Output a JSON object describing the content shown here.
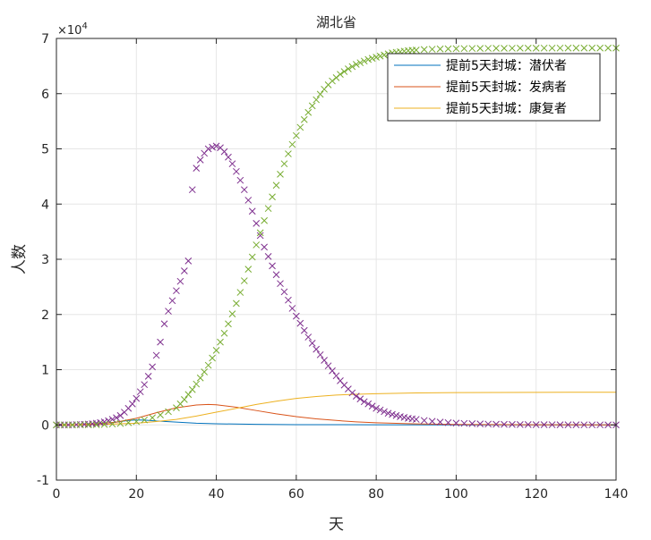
{
  "chart_data": {
    "type": "line",
    "title": "湖北省",
    "xlabel": "天",
    "ylabel": "人数",
    "y_exponent_label": "×10",
    "y_exponent_power": "4",
    "xlim": [
      0,
      140
    ],
    "ylim": [
      -10000,
      70000
    ],
    "x_ticks": [
      0,
      20,
      40,
      60,
      80,
      100,
      120,
      140
    ],
    "y_ticks": [
      -10000,
      0,
      10000,
      20000,
      30000,
      40000,
      50000,
      60000,
      70000
    ],
    "y_tick_labels": [
      "-1",
      "0",
      "1",
      "2",
      "3",
      "4",
      "5",
      "6",
      "7"
    ],
    "grid": true,
    "legend_position": "top-right",
    "colors": {
      "latent": "#0072BD",
      "onset": "#D95319",
      "recovered": "#EDB120",
      "cases_marker": "#7E2F8E",
      "recovered_marker": "#77AC30",
      "grid": "#e6e6e6",
      "axis": "#262626"
    },
    "series": [
      {
        "name": "提前5天封城：潜伏者",
        "kind": "line",
        "color_key": "latent",
        "points": [
          [
            0,
            0
          ],
          [
            5,
            20
          ],
          [
            10,
            150
          ],
          [
            15,
            500
          ],
          [
            18,
            800
          ],
          [
            20,
            900
          ],
          [
            22,
            870
          ],
          [
            25,
            700
          ],
          [
            30,
            500
          ],
          [
            35,
            300
          ],
          [
            40,
            200
          ],
          [
            50,
            100
          ],
          [
            60,
            50
          ],
          [
            80,
            20
          ],
          [
            100,
            10
          ],
          [
            140,
            0
          ]
        ]
      },
      {
        "name": "提前5天封城：发病者",
        "kind": "line",
        "color_key": "onset",
        "points": [
          [
            0,
            0
          ],
          [
            5,
            50
          ],
          [
            10,
            200
          ],
          [
            15,
            500
          ],
          [
            20,
            1200
          ],
          [
            25,
            2200
          ],
          [
            30,
            3100
          ],
          [
            35,
            3600
          ],
          [
            38,
            3700
          ],
          [
            40,
            3650
          ],
          [
            45,
            3200
          ],
          [
            50,
            2600
          ],
          [
            55,
            2000
          ],
          [
            60,
            1500
          ],
          [
            65,
            1100
          ],
          [
            70,
            800
          ],
          [
            75,
            550
          ],
          [
            80,
            380
          ],
          [
            90,
            180
          ],
          [
            100,
            80
          ],
          [
            120,
            20
          ],
          [
            140,
            0
          ]
        ]
      },
      {
        "name": "提前5天封城：康复者",
        "kind": "line",
        "color_key": "recovered",
        "points": [
          [
            0,
            0
          ],
          [
            10,
            50
          ],
          [
            20,
            300
          ],
          [
            25,
            600
          ],
          [
            30,
            1000
          ],
          [
            35,
            1600
          ],
          [
            40,
            2300
          ],
          [
            45,
            3000
          ],
          [
            50,
            3700
          ],
          [
            55,
            4300
          ],
          [
            60,
            4800
          ],
          [
            65,
            5150
          ],
          [
            70,
            5400
          ],
          [
            75,
            5550
          ],
          [
            80,
            5650
          ],
          [
            90,
            5780
          ],
          [
            100,
            5850
          ],
          [
            120,
            5900
          ],
          [
            140,
            5920
          ]
        ]
      },
      {
        "kind": "marker",
        "color_key": "cases_marker",
        "points": [
          [
            0,
            0
          ],
          [
            1,
            0
          ],
          [
            2,
            0
          ],
          [
            3,
            0
          ],
          [
            4,
            0
          ],
          [
            5,
            50
          ],
          [
            6,
            70
          ],
          [
            7,
            100
          ],
          [
            8,
            150
          ],
          [
            9,
            200
          ],
          [
            10,
            300
          ],
          [
            11,
            400
          ],
          [
            12,
            550
          ],
          [
            13,
            750
          ],
          [
            14,
            1000
          ],
          [
            15,
            1300
          ],
          [
            16,
            1700
          ],
          [
            17,
            2300
          ],
          [
            18,
            3000
          ],
          [
            19,
            3800
          ],
          [
            20,
            4800
          ],
          [
            21,
            6000
          ],
          [
            22,
            7300
          ],
          [
            23,
            8800
          ],
          [
            24,
            10500
          ],
          [
            25,
            12600
          ],
          [
            26,
            15000
          ],
          [
            27,
            18300
          ],
          [
            28,
            20600
          ],
          [
            29,
            22500
          ],
          [
            30,
            24300
          ],
          [
            31,
            26000
          ],
          [
            32,
            27900
          ],
          [
            33,
            29700
          ],
          [
            34,
            42600
          ],
          [
            35,
            46500
          ],
          [
            36,
            48000
          ],
          [
            37,
            49200
          ],
          [
            38,
            50000
          ],
          [
            39,
            50300
          ],
          [
            40,
            50500
          ],
          [
            41,
            50200
          ],
          [
            42,
            49500
          ],
          [
            43,
            48500
          ],
          [
            44,
            47300
          ],
          [
            45,
            45900
          ],
          [
            46,
            44300
          ],
          [
            47,
            42600
          ],
          [
            48,
            40700
          ],
          [
            49,
            38700
          ],
          [
            50,
            36500
          ],
          [
            51,
            34300
          ],
          [
            52,
            32200
          ],
          [
            53,
            30500
          ],
          [
            54,
            28800
          ],
          [
            55,
            27200
          ],
          [
            56,
            25600
          ],
          [
            57,
            24100
          ],
          [
            58,
            22600
          ],
          [
            59,
            21100
          ],
          [
            60,
            19700
          ],
          [
            61,
            18400
          ],
          [
            62,
            17100
          ],
          [
            63,
            15900
          ],
          [
            64,
            14800
          ],
          [
            65,
            13700
          ],
          [
            66,
            12700
          ],
          [
            67,
            11700
          ],
          [
            68,
            10700
          ],
          [
            69,
            9800
          ],
          [
            70,
            8900
          ],
          [
            71,
            8000
          ],
          [
            72,
            7200
          ],
          [
            73,
            6500
          ],
          [
            74,
            5800
          ],
          [
            75,
            5200
          ],
          [
            76,
            4700
          ],
          [
            77,
            4200
          ],
          [
            78,
            3800
          ],
          [
            79,
            3400
          ],
          [
            80,
            3000
          ],
          [
            81,
            2700
          ],
          [
            82,
            2400
          ],
          [
            83,
            2100
          ],
          [
            84,
            1900
          ],
          [
            85,
            1700
          ],
          [
            86,
            1500
          ],
          [
            87,
            1350
          ],
          [
            88,
            1200
          ],
          [
            89,
            1100
          ],
          [
            90,
            1000
          ],
          [
            92,
            800
          ],
          [
            94,
            650
          ],
          [
            96,
            500
          ],
          [
            98,
            400
          ],
          [
            100,
            330
          ],
          [
            102,
            270
          ],
          [
            104,
            220
          ],
          [
            106,
            180
          ],
          [
            108,
            150
          ],
          [
            110,
            120
          ],
          [
            112,
            100
          ],
          [
            114,
            80
          ],
          [
            116,
            65
          ],
          [
            118,
            55
          ],
          [
            120,
            45
          ],
          [
            122,
            35
          ],
          [
            124,
            30
          ],
          [
            126,
            25
          ],
          [
            128,
            20
          ],
          [
            130,
            15
          ],
          [
            132,
            12
          ],
          [
            134,
            10
          ],
          [
            136,
            8
          ],
          [
            138,
            5
          ],
          [
            140,
            0
          ]
        ]
      },
      {
        "kind": "marker",
        "color_key": "recovered_marker",
        "points": [
          [
            0,
            0
          ],
          [
            2,
            0
          ],
          [
            4,
            0
          ],
          [
            6,
            10
          ],
          [
            8,
            20
          ],
          [
            10,
            40
          ],
          [
            12,
            80
          ],
          [
            14,
            150
          ],
          [
            16,
            250
          ],
          [
            18,
            400
          ],
          [
            20,
            600
          ],
          [
            22,
            900
          ],
          [
            24,
            1300
          ],
          [
            26,
            1800
          ],
          [
            28,
            2400
          ],
          [
            30,
            3100
          ],
          [
            31,
            3800
          ],
          [
            32,
            4600
          ],
          [
            33,
            5500
          ],
          [
            34,
            6400
          ],
          [
            35,
            7400
          ],
          [
            36,
            8500
          ],
          [
            37,
            9600
          ],
          [
            38,
            10800
          ],
          [
            39,
            12100
          ],
          [
            40,
            13500
          ],
          [
            41,
            15000
          ],
          [
            42,
            16600
          ],
          [
            43,
            18300
          ],
          [
            44,
            20100
          ],
          [
            45,
            22000
          ],
          [
            46,
            24000
          ],
          [
            47,
            26100
          ],
          [
            48,
            28200
          ],
          [
            49,
            30400
          ],
          [
            50,
            32600
          ],
          [
            51,
            34800
          ],
          [
            52,
            37000
          ],
          [
            53,
            39200
          ],
          [
            54,
            41300
          ],
          [
            55,
            43400
          ],
          [
            56,
            45400
          ],
          [
            57,
            47300
          ],
          [
            58,
            49100
          ],
          [
            59,
            50800
          ],
          [
            60,
            52400
          ],
          [
            61,
            53900
          ],
          [
            62,
            55300
          ],
          [
            63,
            56600
          ],
          [
            64,
            57800
          ],
          [
            65,
            58900
          ],
          [
            66,
            59900
          ],
          [
            67,
            60800
          ],
          [
            68,
            61600
          ],
          [
            69,
            62300
          ],
          [
            70,
            62900
          ],
          [
            71,
            63500
          ],
          [
            72,
            64000
          ],
          [
            73,
            64500
          ],
          [
            74,
            64900
          ],
          [
            75,
            65300
          ],
          [
            76,
            65600
          ],
          [
            77,
            65900
          ],
          [
            78,
            66200
          ],
          [
            79,
            66400
          ],
          [
            80,
            66600
          ],
          [
            81,
            66800
          ],
          [
            82,
            67000
          ],
          [
            83,
            67200
          ],
          [
            84,
            67400
          ],
          [
            85,
            67500
          ],
          [
            86,
            67600
          ],
          [
            87,
            67700
          ],
          [
            88,
            67800
          ],
          [
            89,
            67850
          ],
          [
            90,
            67900
          ],
          [
            92,
            68000
          ],
          [
            94,
            68050
          ],
          [
            96,
            68100
          ],
          [
            98,
            68120
          ],
          [
            100,
            68150
          ],
          [
            102,
            68170
          ],
          [
            104,
            68190
          ],
          [
            106,
            68200
          ],
          [
            108,
            68210
          ],
          [
            110,
            68220
          ],
          [
            112,
            68225
          ],
          [
            114,
            68230
          ],
          [
            116,
            68235
          ],
          [
            118,
            68240
          ],
          [
            120,
            68245
          ],
          [
            122,
            68248
          ],
          [
            124,
            68250
          ],
          [
            126,
            68252
          ],
          [
            128,
            68254
          ],
          [
            130,
            68256
          ],
          [
            132,
            68258
          ],
          [
            134,
            68260
          ],
          [
            136,
            68262
          ],
          [
            138,
            68264
          ],
          [
            140,
            68265
          ]
        ]
      }
    ]
  }
}
